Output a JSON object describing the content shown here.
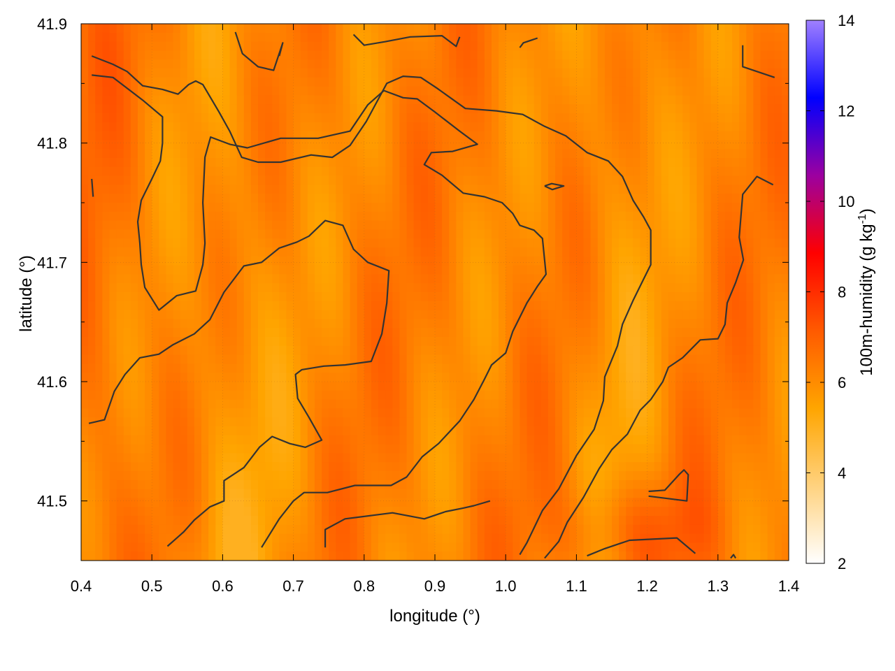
{
  "chart_data": {
    "type": "heatmap",
    "xlabel": "longitude (°)",
    "ylabel": "latitude (°)",
    "colorbar_label": "100m-humidity (g kg",
    "colorbar_label_sup": "-1",
    "colorbar_label_close": ")",
    "xlim": [
      0.4,
      1.4
    ],
    "ylim": [
      41.45,
      41.9
    ],
    "x_ticks": [
      {
        "value": 0.4,
        "label": "0.4"
      },
      {
        "value": 0.5,
        "label": "0.5"
      },
      {
        "value": 0.6,
        "label": "0.6"
      },
      {
        "value": 0.7,
        "label": "0.7"
      },
      {
        "value": 0.8,
        "label": "0.8"
      },
      {
        "value": 0.9,
        "label": "0.9"
      },
      {
        "value": 1.0,
        "label": "1.0"
      },
      {
        "value": 1.1,
        "label": "1.1"
      },
      {
        "value": 1.2,
        "label": "1.2"
      },
      {
        "value": 1.3,
        "label": "1.3"
      },
      {
        "value": 1.4,
        "label": "1.4"
      }
    ],
    "y_ticks": [
      {
        "value": 41.5,
        "label": "41.5"
      },
      {
        "value": 41.6,
        "label": "41.6"
      },
      {
        "value": 41.7,
        "label": "41.7"
      },
      {
        "value": 41.8,
        "label": "41.8"
      },
      {
        "value": 41.9,
        "label": "41.9"
      }
    ],
    "colorbar": {
      "range": [
        2,
        14
      ],
      "ticks": [
        {
          "value": 2,
          "label": "2"
        },
        {
          "value": 4,
          "label": "4"
        },
        {
          "value": 6,
          "label": "6"
        },
        {
          "value": 8,
          "label": "8"
        },
        {
          "value": 10,
          "label": "10"
        },
        {
          "value": 12,
          "label": "12"
        },
        {
          "value": 14,
          "label": "14"
        }
      ],
      "colors": [
        "#ffffff",
        "#ffd27f",
        "#ffa500",
        "#ff5a00",
        "#ff0000",
        "#9c00a0",
        "#0000ff",
        "#a080ff"
      ]
    },
    "grid": true,
    "contour_color": "#333333",
    "field": {
      "description_of_pattern": "humidity mostly 5-7 g/kg; higher (~7-8) toward lower-right",
      "value_range": [
        5.0,
        7.8
      ]
    },
    "contours": [
      [
        [
          0.415,
          41.873
        ],
        [
          0.445,
          41.866
        ],
        [
          0.465,
          41.86
        ],
        [
          0.487,
          41.848
        ],
        [
          0.515,
          41.845
        ],
        [
          0.537,
          41.841
        ],
        [
          0.552,
          41.849
        ],
        [
          0.562,
          41.852
        ],
        [
          0.572,
          41.849
        ],
        [
          0.595,
          41.826
        ],
        [
          0.61,
          41.81
        ],
        [
          0.627,
          41.788
        ],
        [
          0.65,
          41.784
        ],
        [
          0.682,
          41.784
        ],
        [
          0.725,
          41.79
        ],
        [
          0.755,
          41.788
        ],
        [
          0.78,
          41.798
        ],
        [
          0.803,
          41.818
        ],
        [
          0.832,
          41.85
        ],
        [
          0.855,
          41.856
        ],
        [
          0.88,
          41.855
        ],
        [
          0.903,
          41.846
        ],
        [
          0.943,
          41.829
        ],
        [
          0.987,
          41.827
        ],
        [
          1.024,
          41.824
        ],
        [
          1.055,
          41.814
        ],
        [
          1.085,
          41.806
        ],
        [
          1.115,
          41.792
        ],
        [
          1.145,
          41.785
        ],
        [
          1.165,
          41.772
        ],
        [
          1.18,
          41.752
        ],
        [
          1.195,
          41.738
        ],
        [
          1.205,
          41.727
        ],
        [
          1.205,
          41.698
        ],
        [
          1.195,
          41.686
        ],
        [
          1.18,
          41.668
        ],
        [
          1.165,
          41.648
        ],
        [
          1.158,
          41.63
        ],
        [
          1.14,
          41.604
        ],
        [
          1.138,
          41.584
        ],
        [
          1.125,
          41.56
        ],
        [
          1.1,
          41.538
        ],
        [
          1.075,
          41.51
        ],
        [
          1.052,
          41.492
        ],
        [
          1.03,
          41.465
        ],
        [
          1.02,
          41.455
        ]
      ],
      [
        [
          0.415,
          41.857
        ],
        [
          0.445,
          41.855
        ],
        [
          0.465,
          41.846
        ],
        [
          0.487,
          41.836
        ],
        [
          0.515,
          41.822
        ],
        [
          0.515,
          41.8
        ],
        [
          0.512,
          41.785
        ],
        [
          0.5,
          41.77
        ],
        [
          0.485,
          41.752
        ],
        [
          0.48,
          41.734
        ],
        [
          0.483,
          41.716
        ],
        [
          0.485,
          41.698
        ],
        [
          0.49,
          41.679
        ],
        [
          0.51,
          41.66
        ],
        [
          0.535,
          41.672
        ],
        [
          0.562,
          41.676
        ],
        [
          0.572,
          41.698
        ],
        [
          0.575,
          41.716
        ],
        [
          0.572,
          41.75
        ],
        [
          0.575,
          41.788
        ],
        [
          0.583,
          41.805
        ],
        [
          0.61,
          41.799
        ],
        [
          0.635,
          41.796
        ],
        [
          0.682,
          41.804
        ],
        [
          0.735,
          41.804
        ],
        [
          0.78,
          41.81
        ],
        [
          0.805,
          41.832
        ],
        [
          0.828,
          41.844
        ],
        [
          0.855,
          41.838
        ],
        [
          0.875,
          41.837
        ],
        [
          0.9,
          41.826
        ],
        [
          0.935,
          41.81
        ],
        [
          0.96,
          41.799
        ],
        [
          0.925,
          41.793
        ],
        [
          0.895,
          41.792
        ],
        [
          0.885,
          41.782
        ],
        [
          0.91,
          41.773
        ],
        [
          0.94,
          41.758
        ],
        [
          0.97,
          41.755
        ],
        [
          0.995,
          41.75
        ],
        [
          1.01,
          41.741
        ],
        [
          1.02,
          41.731
        ],
        [
          1.04,
          41.727
        ],
        [
          1.052,
          41.72
        ],
        [
          1.057,
          41.69
        ],
        [
          1.045,
          41.68
        ],
        [
          1.03,
          41.666
        ],
        [
          1.01,
          41.642
        ],
        [
          1.0,
          41.624
        ],
        [
          0.98,
          41.614
        ],
        [
          0.97,
          41.602
        ],
        [
          0.955,
          41.585
        ],
        [
          0.935,
          41.567
        ],
        [
          0.905,
          41.548
        ],
        [
          0.882,
          41.537
        ],
        [
          0.86,
          41.52
        ],
        [
          0.838,
          41.513
        ],
        [
          0.787,
          41.513
        ],
        [
          0.748,
          41.507
        ],
        [
          0.715,
          41.507
        ],
        [
          0.7,
          41.5
        ],
        [
          0.68,
          41.485
        ],
        [
          0.655,
          41.461
        ]
      ],
      [
        [
          0.411,
          41.565
        ],
        [
          0.433,
          41.568
        ],
        [
          0.447,
          41.592
        ],
        [
          0.462,
          41.606
        ],
        [
          0.483,
          41.62
        ],
        [
          0.51,
          41.623
        ],
        [
          0.53,
          41.631
        ],
        [
          0.56,
          41.64
        ],
        [
          0.582,
          41.652
        ],
        [
          0.602,
          41.675
        ],
        [
          0.63,
          41.697
        ],
        [
          0.655,
          41.7
        ],
        [
          0.68,
          41.712
        ],
        [
          0.705,
          41.717
        ],
        [
          0.722,
          41.722
        ],
        [
          0.745,
          41.735
        ],
        [
          0.77,
          41.731
        ],
        [
          0.785,
          41.711
        ],
        [
          0.805,
          41.7
        ],
        [
          0.835,
          41.693
        ],
        [
          0.832,
          41.666
        ],
        [
          0.825,
          41.64
        ],
        [
          0.81,
          41.617
        ],
        [
          0.773,
          41.614
        ],
        [
          0.743,
          41.613
        ],
        [
          0.712,
          41.61
        ],
        [
          0.703,
          41.606
        ],
        [
          0.706,
          41.586
        ],
        [
          0.722,
          41.57
        ],
        [
          0.74,
          41.551
        ],
        [
          0.717,
          41.545
        ],
        [
          0.695,
          41.548
        ],
        [
          0.67,
          41.554
        ],
        [
          0.652,
          41.545
        ],
        [
          0.63,
          41.528
        ],
        [
          0.602,
          41.517
        ],
        [
          0.602,
          41.5
        ],
        [
          0.582,
          41.495
        ],
        [
          0.56,
          41.484
        ],
        [
          0.545,
          41.474
        ],
        [
          0.522,
          41.462
        ]
      ],
      [
        [
          0.68,
          41.873
        ],
        [
          0.685,
          41.884
        ],
        [
          0.672,
          41.861
        ],
        [
          0.65,
          41.864
        ],
        [
          0.628,
          41.875
        ],
        [
          0.618,
          41.893
        ]
      ],
      [
        [
          0.785,
          41.891
        ],
        [
          0.8,
          41.882
        ],
        [
          0.83,
          41.885
        ],
        [
          0.865,
          41.889
        ],
        [
          0.91,
          41.89
        ],
        [
          0.93,
          41.881
        ],
        [
          0.935,
          41.889
        ]
      ],
      [
        [
          1.02,
          41.88
        ],
        [
          1.025,
          41.884
        ],
        [
          1.045,
          41.888
        ]
      ],
      [
        [
          0.415,
          41.77
        ],
        [
          0.417,
          41.755
        ]
      ],
      [
        [
          1.055,
          41.764
        ],
        [
          1.065,
          41.766
        ],
        [
          1.082,
          41.764
        ],
        [
          1.066,
          41.761
        ],
        [
          1.055,
          41.764
        ]
      ],
      [
        [
          1.335,
          41.882
        ],
        [
          1.335,
          41.864
        ],
        [
          1.38,
          41.855
        ]
      ],
      [
        [
          1.378,
          41.765
        ],
        [
          1.355,
          41.772
        ],
        [
          1.335,
          41.757
        ],
        [
          1.33,
          41.721
        ],
        [
          1.336,
          41.702
        ],
        [
          1.325,
          41.683
        ],
        [
          1.313,
          41.666
        ],
        [
          1.31,
          41.648
        ],
        [
          1.3,
          41.636
        ],
        [
          1.275,
          41.635
        ],
        [
          1.25,
          41.62
        ],
        [
          1.23,
          41.612
        ],
        [
          1.222,
          41.6
        ],
        [
          1.205,
          41.585
        ],
        [
          1.19,
          41.576
        ],
        [
          1.172,
          41.556
        ],
        [
          1.15,
          41.543
        ],
        [
          1.132,
          41.527
        ],
        [
          1.11,
          41.503
        ],
        [
          1.087,
          41.482
        ],
        [
          1.075,
          41.466
        ],
        [
          1.055,
          41.452
        ]
      ],
      [
        [
          1.115,
          41.454
        ],
        [
          1.14,
          41.46
        ],
        [
          1.175,
          41.467
        ],
        [
          1.242,
          41.469
        ],
        [
          1.268,
          41.456
        ]
      ],
      [
        [
          1.202,
          41.508
        ],
        [
          1.225,
          41.509
        ],
        [
          1.245,
          41.522
        ],
        [
          1.252,
          41.526
        ],
        [
          1.258,
          41.522
        ],
        [
          1.256,
          41.5
        ],
        [
          1.202,
          41.504
        ]
      ],
      [
        [
          0.745,
          41.461
        ],
        [
          0.745,
          41.476
        ],
        [
          0.773,
          41.485
        ],
        [
          0.84,
          41.49
        ],
        [
          0.885,
          41.485
        ],
        [
          0.915,
          41.491
        ],
        [
          0.94,
          41.494
        ],
        [
          0.955,
          41.496
        ],
        [
          0.978,
          41.5
        ]
      ],
      [
        [
          1.318,
          41.452
        ],
        [
          1.322,
          41.455
        ],
        [
          1.325,
          41.452
        ]
      ]
    ]
  }
}
